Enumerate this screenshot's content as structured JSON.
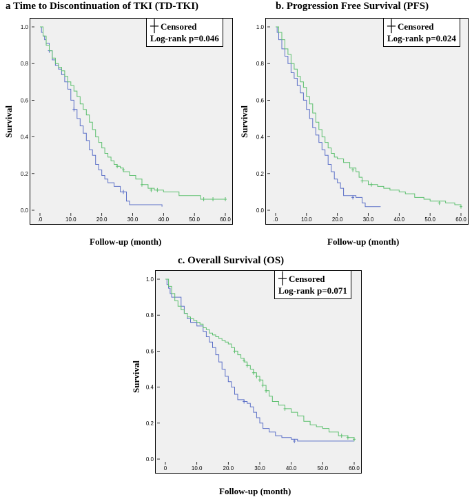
{
  "chart_data": [
    {
      "id": "a",
      "type": "line",
      "title": "a  Time to Discontinuation of TKI (TD-TKI)",
      "xlabel": "Follow-up (month)",
      "ylabel": "Survival",
      "xlim": [
        0,
        60
      ],
      "ylim": [
        0,
        1.0
      ],
      "x_ticks": [
        ".0",
        "10.0",
        "20.0",
        "30.0",
        "40.0",
        "50.0",
        "60.0"
      ],
      "y_ticks": [
        "0.0",
        "0.2",
        "0.4",
        "0.6",
        "0.8",
        "1.0"
      ],
      "legend": {
        "censored_label": "Censored",
        "logrank": "Log-rank p=0.046"
      },
      "series": [
        {
          "name": "blue",
          "color": "#5b6fc7",
          "points": [
            [
              0,
              1.0
            ],
            [
              0.5,
              0.97
            ],
            [
              1,
              0.95
            ],
            [
              1.5,
              0.93
            ],
            [
              2,
              0.91
            ],
            [
              3,
              0.87
            ],
            [
              4,
              0.82
            ],
            [
              5,
              0.79
            ],
            [
              6,
              0.77
            ],
            [
              7,
              0.74
            ],
            [
              8,
              0.7
            ],
            [
              9,
              0.66
            ],
            [
              10,
              0.6
            ],
            [
              11,
              0.55
            ],
            [
              12,
              0.5
            ],
            [
              13,
              0.46
            ],
            [
              14,
              0.42
            ],
            [
              15,
              0.38
            ],
            [
              16,
              0.33
            ],
            [
              17,
              0.3
            ],
            [
              18,
              0.25
            ],
            [
              19,
              0.22
            ],
            [
              20,
              0.19
            ],
            [
              21,
              0.17
            ],
            [
              22,
              0.15
            ],
            [
              24,
              0.13
            ],
            [
              26,
              0.1
            ],
            [
              28,
              0.05
            ],
            [
              29,
              0.03
            ],
            [
              39.5,
              0.02
            ]
          ],
          "censored": [
            [
              3,
              0.87
            ],
            [
              11,
              0.55
            ],
            [
              27,
              0.1
            ]
          ]
        },
        {
          "name": "green",
          "color": "#5cbf6e",
          "points": [
            [
              0,
              1.0
            ],
            [
              1,
              0.95
            ],
            [
              2,
              0.9
            ],
            [
              3,
              0.87
            ],
            [
              4,
              0.83
            ],
            [
              5,
              0.8
            ],
            [
              6,
              0.78
            ],
            [
              7,
              0.76
            ],
            [
              8,
              0.73
            ],
            [
              9,
              0.7
            ],
            [
              10,
              0.68
            ],
            [
              11,
              0.65
            ],
            [
              12,
              0.62
            ],
            [
              13,
              0.58
            ],
            [
              14,
              0.55
            ],
            [
              15,
              0.52
            ],
            [
              16,
              0.48
            ],
            [
              17,
              0.44
            ],
            [
              18,
              0.4
            ],
            [
              19,
              0.37
            ],
            [
              20,
              0.34
            ],
            [
              21,
              0.31
            ],
            [
              22,
              0.29
            ],
            [
              23,
              0.27
            ],
            [
              24,
              0.25
            ],
            [
              25,
              0.24
            ],
            [
              26,
              0.23
            ],
            [
              27,
              0.21
            ],
            [
              29,
              0.19
            ],
            [
              31,
              0.17
            ],
            [
              33,
              0.14
            ],
            [
              35,
              0.12
            ],
            [
              37,
              0.11
            ],
            [
              40,
              0.1
            ],
            [
              45,
              0.08
            ],
            [
              52,
              0.06
            ],
            [
              60,
              0.06
            ]
          ],
          "censored": [
            [
              25,
              0.24
            ],
            [
              27,
              0.22
            ],
            [
              33,
              0.14
            ],
            [
              36,
              0.11
            ],
            [
              38,
              0.11
            ],
            [
              53,
              0.06
            ],
            [
              56,
              0.06
            ],
            [
              60,
              0.06
            ]
          ]
        }
      ]
    },
    {
      "id": "b",
      "type": "line",
      "title": "b. Progression Free Survival (PFS)",
      "xlabel": "Follow-up (month)",
      "ylabel": "Survival",
      "xlim": [
        0,
        60
      ],
      "ylim": [
        0,
        1.0
      ],
      "x_ticks": [
        ".0",
        "10.0",
        "20.0",
        "30.0",
        "40.0",
        "50.0",
        "60.0"
      ],
      "y_ticks": [
        "0.0",
        "0.2",
        "0.4",
        "0.6",
        "0.8",
        "1.0"
      ],
      "legend": {
        "censored_label": "Censored",
        "logrank": "Log-rank p=0.024"
      },
      "series": [
        {
          "name": "blue",
          "color": "#5b6fc7",
          "points": [
            [
              0,
              1.0
            ],
            [
              0.5,
              0.97
            ],
            [
              1,
              0.93
            ],
            [
              2,
              0.88
            ],
            [
              3,
              0.84
            ],
            [
              4,
              0.8
            ],
            [
              5,
              0.75
            ],
            [
              6,
              0.72
            ],
            [
              7,
              0.68
            ],
            [
              8,
              0.64
            ],
            [
              9,
              0.6
            ],
            [
              10,
              0.55
            ],
            [
              11,
              0.5
            ],
            [
              12,
              0.45
            ],
            [
              13,
              0.41
            ],
            [
              14,
              0.37
            ],
            [
              15,
              0.33
            ],
            [
              16,
              0.3
            ],
            [
              17,
              0.25
            ],
            [
              18,
              0.21
            ],
            [
              19,
              0.17
            ],
            [
              20,
              0.15
            ],
            [
              21,
              0.12
            ],
            [
              22,
              0.08
            ],
            [
              26,
              0.07
            ],
            [
              28,
              0.04
            ],
            [
              29,
              0.02
            ],
            [
              34,
              0.02
            ]
          ],
          "censored": [
            [
              25,
              0.07
            ]
          ]
        },
        {
          "name": "green",
          "color": "#5cbf6e",
          "points": [
            [
              0,
              1.0
            ],
            [
              1,
              0.97
            ],
            [
              2,
              0.93
            ],
            [
              3,
              0.88
            ],
            [
              4,
              0.85
            ],
            [
              5,
              0.8
            ],
            [
              6,
              0.77
            ],
            [
              7,
              0.73
            ],
            [
              8,
              0.7
            ],
            [
              9,
              0.67
            ],
            [
              10,
              0.62
            ],
            [
              11,
              0.58
            ],
            [
              12,
              0.53
            ],
            [
              13,
              0.48
            ],
            [
              14,
              0.44
            ],
            [
              15,
              0.4
            ],
            [
              16,
              0.37
            ],
            [
              17,
              0.34
            ],
            [
              18,
              0.31
            ],
            [
              19,
              0.29
            ],
            [
              20,
              0.28
            ],
            [
              22,
              0.26
            ],
            [
              24,
              0.23
            ],
            [
              26,
              0.21
            ],
            [
              27,
              0.18
            ],
            [
              28,
              0.16
            ],
            [
              30,
              0.14
            ],
            [
              33,
              0.13
            ],
            [
              35,
              0.12
            ],
            [
              37,
              0.11
            ],
            [
              40,
              0.1
            ],
            [
              42,
              0.09
            ],
            [
              45,
              0.07
            ],
            [
              48,
              0.06
            ],
            [
              50,
              0.05
            ],
            [
              55,
              0.04
            ],
            [
              58,
              0.03
            ],
            [
              60,
              0.02
            ]
          ],
          "censored": [
            [
              25,
              0.22
            ],
            [
              28,
              0.16
            ],
            [
              31,
              0.14
            ],
            [
              53,
              0.04
            ],
            [
              60,
              0.02
            ]
          ]
        }
      ]
    },
    {
      "id": "c",
      "type": "line",
      "title": "c. Overall Survival (OS)",
      "xlabel": "Follow-up (month)",
      "ylabel": "Survival",
      "xlim": [
        0,
        60
      ],
      "ylim": [
        0,
        1.0
      ],
      "x_ticks": [
        "0",
        "10.0",
        "20.0",
        "30.0",
        "40.0",
        "50.0",
        "60.0"
      ],
      "y_ticks": [
        "0.0",
        "0.2",
        "0.4",
        "0.6",
        "0.8",
        "1.0"
      ],
      "legend": {
        "censored_label": "Censored",
        "logrank": "Log-rank p=0.071"
      },
      "series": [
        {
          "name": "blue",
          "color": "#5b6fc7",
          "points": [
            [
              0,
              1.0
            ],
            [
              0.5,
              0.97
            ],
            [
              1,
              0.95
            ],
            [
              1.5,
              0.92
            ],
            [
              2,
              0.9
            ],
            [
              4,
              0.9
            ],
            [
              5,
              0.85
            ],
            [
              6,
              0.81
            ],
            [
              7,
              0.78
            ],
            [
              8,
              0.76
            ],
            [
              10,
              0.74
            ],
            [
              12,
              0.71
            ],
            [
              13,
              0.68
            ],
            [
              14,
              0.65
            ],
            [
              15,
              0.62
            ],
            [
              16,
              0.58
            ],
            [
              17,
              0.54
            ],
            [
              18,
              0.5
            ],
            [
              19,
              0.46
            ],
            [
              20,
              0.43
            ],
            [
              21,
              0.4
            ],
            [
              22,
              0.36
            ],
            [
              23,
              0.33
            ],
            [
              25,
              0.32
            ],
            [
              26,
              0.31
            ],
            [
              27,
              0.29
            ],
            [
              28,
              0.26
            ],
            [
              29,
              0.23
            ],
            [
              30,
              0.2
            ],
            [
              31,
              0.17
            ],
            [
              33,
              0.15
            ],
            [
              35,
              0.13
            ],
            [
              37,
              0.12
            ],
            [
              40,
              0.11
            ],
            [
              42,
              0.1
            ],
            [
              60,
              0.1
            ]
          ],
          "censored": [
            [
              25,
              0.32
            ],
            [
              41,
              0.1
            ]
          ]
        },
        {
          "name": "green",
          "color": "#5cbf6e",
          "points": [
            [
              0,
              1.0
            ],
            [
              1,
              0.96
            ],
            [
              2,
              0.92
            ],
            [
              3,
              0.88
            ],
            [
              4,
              0.85
            ],
            [
              5,
              0.83
            ],
            [
              6,
              0.81
            ],
            [
              7,
              0.79
            ],
            [
              8,
              0.78
            ],
            [
              9,
              0.77
            ],
            [
              10,
              0.76
            ],
            [
              11,
              0.75
            ],
            [
              12,
              0.73
            ],
            [
              13,
              0.72
            ],
            [
              14,
              0.7
            ],
            [
              15,
              0.69
            ],
            [
              16,
              0.68
            ],
            [
              17,
              0.67
            ],
            [
              18,
              0.66
            ],
            [
              19,
              0.65
            ],
            [
              20,
              0.64
            ],
            [
              21,
              0.62
            ],
            [
              22,
              0.6
            ],
            [
              23,
              0.58
            ],
            [
              24,
              0.56
            ],
            [
              25,
              0.54
            ],
            [
              26,
              0.52
            ],
            [
              27,
              0.5
            ],
            [
              28,
              0.48
            ],
            [
              29,
              0.46
            ],
            [
              30,
              0.44
            ],
            [
              31,
              0.41
            ],
            [
              32,
              0.38
            ],
            [
              33,
              0.35
            ],
            [
              34,
              0.32
            ],
            [
              36,
              0.3
            ],
            [
              38,
              0.28
            ],
            [
              40,
              0.26
            ],
            [
              42,
              0.24
            ],
            [
              44,
              0.21
            ],
            [
              46,
              0.19
            ],
            [
              48,
              0.18
            ],
            [
              50,
              0.17
            ],
            [
              52,
              0.15
            ],
            [
              55,
              0.13
            ],
            [
              58,
              0.12
            ],
            [
              60,
              0.11
            ]
          ],
          "censored": [
            [
              22,
              0.6
            ],
            [
              25,
              0.55
            ],
            [
              26,
              0.52
            ],
            [
              28,
              0.48
            ],
            [
              29,
              0.46
            ],
            [
              30,
              0.44
            ],
            [
              31,
              0.41
            ],
            [
              32,
              0.38
            ],
            [
              38,
              0.28
            ],
            [
              56,
              0.13
            ],
            [
              58,
              0.12
            ],
            [
              60,
              0.11
            ]
          ]
        }
      ]
    }
  ]
}
